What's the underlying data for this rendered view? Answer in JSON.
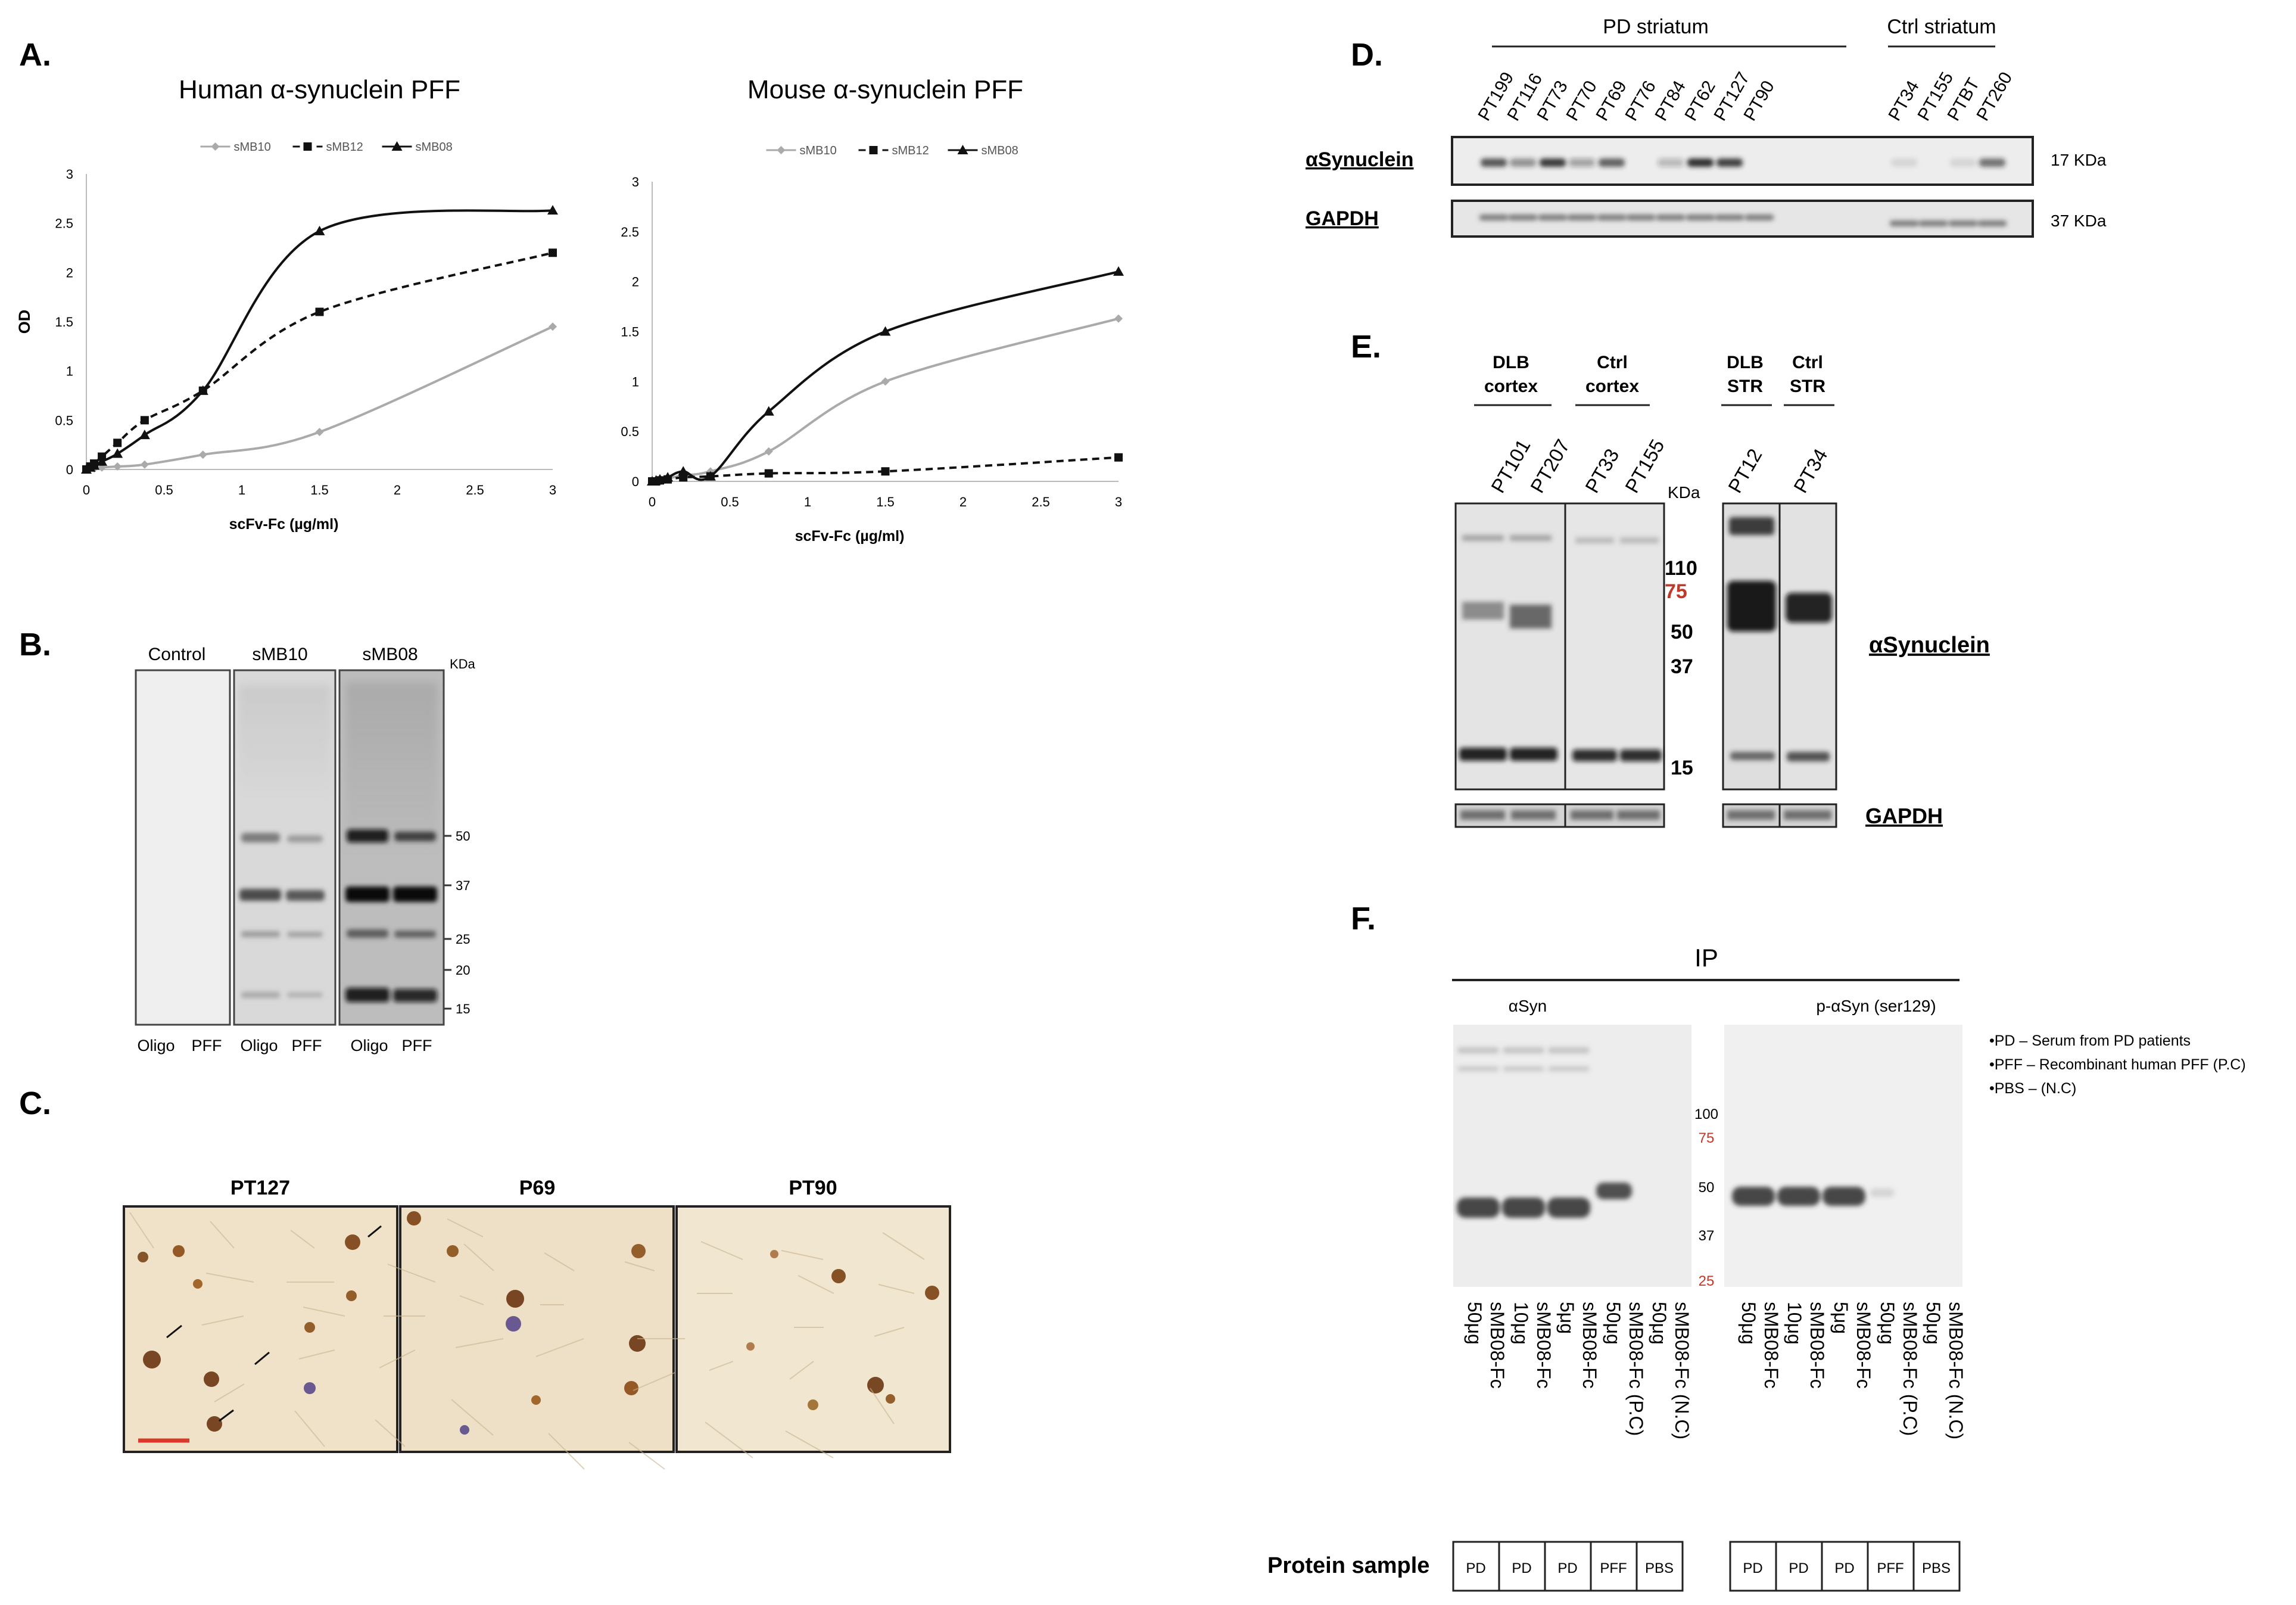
{
  "panels": {
    "A": {
      "letter": "A.",
      "charts_note": "see chart_data",
      "x_tick_labels": [
        "0",
        "0.5",
        "1",
        "1.5",
        "2",
        "2.5",
        "3"
      ]
    },
    "B": {
      "letter": "B.",
      "groups": [
        "Control",
        "sMB10",
        "sMB08"
      ],
      "kda_label": "KDa",
      "markers": [
        "50",
        "37",
        "25",
        "20",
        "15"
      ],
      "lanes": [
        "Oligo",
        "PFF",
        "Oligo",
        "PFF",
        "Oligo",
        "PFF"
      ]
    },
    "C": {
      "letter": "C.",
      "images": [
        "PT127",
        "P69",
        "PT90"
      ]
    },
    "D": {
      "letter": "D.",
      "group_pd": "PD striatum",
      "group_ctrl": "Ctrl striatum",
      "samples": [
        "PT199",
        "PT116",
        "PT73",
        "PT70",
        "PT69",
        "PT76",
        "PT84",
        "PT62",
        "PT127",
        "PT90",
        "PT34",
        "PT155",
        "PTBT",
        "PT260"
      ],
      "row1_label": "αSynuclein",
      "row2_label": "GAPDH",
      "row1_kda": "17 KDa",
      "row2_kda": "37 KDa"
    },
    "E": {
      "letter": "E.",
      "groups": [
        "DLB",
        "cortex",
        "Ctrl",
        "cortex",
        "DLB",
        "STR",
        "Ctrl",
        "STR"
      ],
      "samples": [
        "PT101",
        "PT207",
        "PT33",
        "PT155",
        "PT12",
        "PT34"
      ],
      "kda_label": "KDa",
      "markers": [
        "110",
        "75",
        "50",
        "37",
        "15"
      ],
      "right_label": "αSynuclein",
      "gapdh_label": "GAPDH"
    },
    "F": {
      "letter": "F.",
      "ip_label": "IP",
      "left_title": "αSyn",
      "right_title": "p-αSyn (ser129)",
      "markers": [
        "100",
        "75",
        "50",
        "37",
        "25"
      ],
      "legend": [
        "•PD – Serum from PD patients",
        "•PFF – Recombinant human PFF (P.C)",
        "•PBS – (N.C)"
      ],
      "lane_amounts": [
        "50μg",
        "10μg",
        "5μg",
        "50μg",
        "50μg"
      ],
      "lane_antibodies": [
        "sMB08-Fc",
        "sMB08-Fc",
        "sMB08-Fc",
        "sMB08-Fc (P.C)",
        "sMB08-Fc (N.C)"
      ],
      "protein_sample_label": "Protein sample",
      "samples": [
        "PD",
        "PD",
        "PD",
        "PFF",
        "PBS"
      ]
    }
  },
  "colors": {
    "marker_red": "#c0392b",
    "tissue": "#efe2c8",
    "cell": "#8a4a12"
  },
  "chart_data": [
    {
      "type": "line",
      "title": "Human α-synuclein PFF",
      "xlabel": "scFv-Fc (µg/ml)",
      "ylabel": "OD",
      "xlim": [
        0,
        3
      ],
      "ylim": [
        0,
        3
      ],
      "yticks": [
        "0",
        "0.5",
        "1",
        "1.5",
        "2",
        "2.5",
        "3"
      ],
      "x": [
        0,
        0.025,
        0.05,
        0.1,
        0.2,
        0.375,
        0.75,
        1.5,
        3
      ],
      "series": [
        {
          "name": "sMB10",
          "values": [
            0,
            0.01,
            0.01,
            0.02,
            0.03,
            0.05,
            0.15,
            0.38,
            1.45
          ]
        },
        {
          "name": "sMB12",
          "values": [
            0,
            0.03,
            0.06,
            0.13,
            0.27,
            0.5,
            0.8,
            1.6,
            2.2
          ]
        },
        {
          "name": "sMB08",
          "values": [
            0,
            0.02,
            0.04,
            0.08,
            0.16,
            0.35,
            0.8,
            2.42,
            2.63
          ]
        }
      ]
    },
    {
      "type": "line",
      "title": "Mouse α-synuclein PFF",
      "xlabel": "scFv-Fc (µg/ml)",
      "ylabel": "",
      "xlim": [
        0,
        3
      ],
      "ylim": [
        0,
        3
      ],
      "yticks": [
        "0",
        "0.5",
        "1",
        "1.5",
        "2",
        "2.5",
        "3"
      ],
      "x": [
        0,
        0.025,
        0.05,
        0.1,
        0.2,
        0.375,
        0.75,
        1.5,
        3
      ],
      "series": [
        {
          "name": "sMB10",
          "values": [
            0,
            0.01,
            0.02,
            0.03,
            0.06,
            0.1,
            0.3,
            1.0,
            1.63
          ]
        },
        {
          "name": "sMB12",
          "values": [
            0,
            0.0,
            0.01,
            0.02,
            0.04,
            0.05,
            0.08,
            0.1,
            0.24
          ]
        },
        {
          "name": "sMB08",
          "values": [
            0,
            0.01,
            0.02,
            0.04,
            0.1,
            0.05,
            0.7,
            1.5,
            2.1
          ]
        }
      ]
    }
  ]
}
